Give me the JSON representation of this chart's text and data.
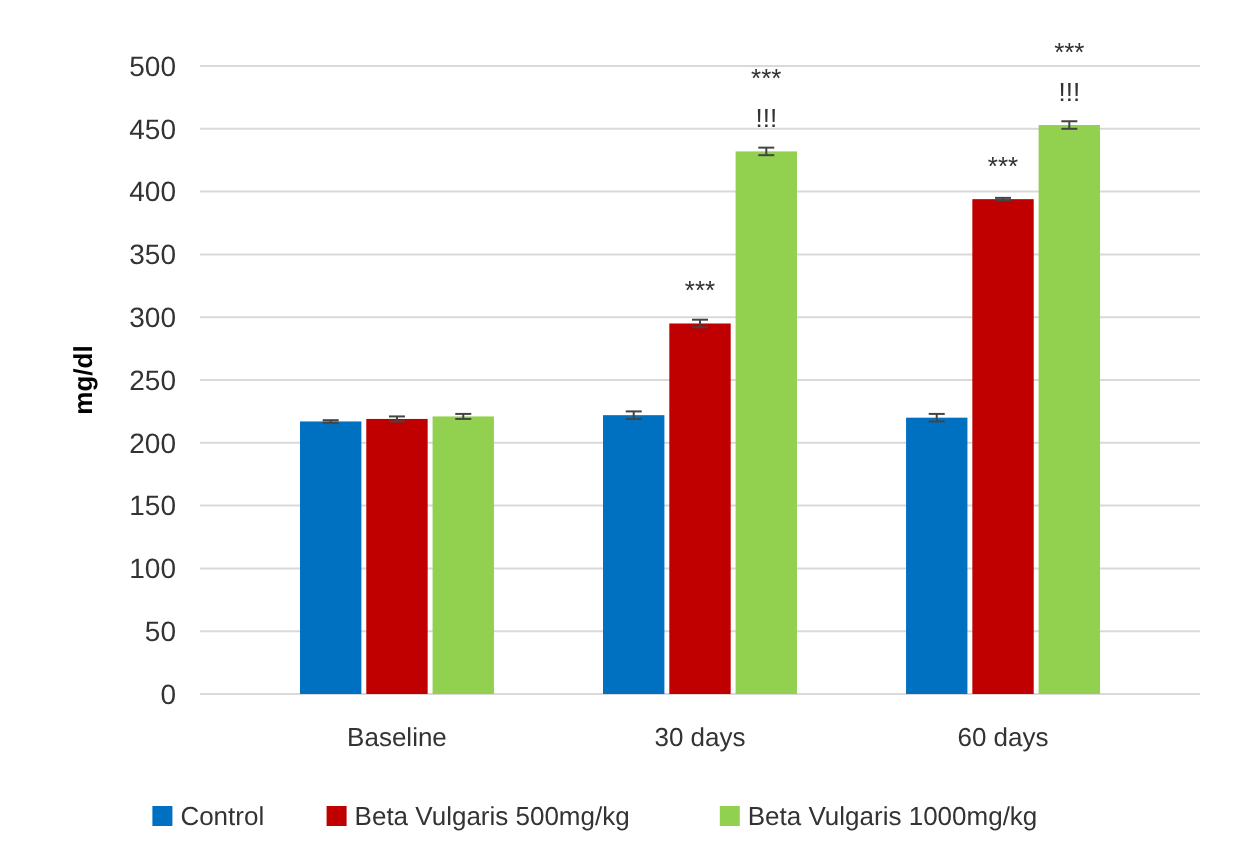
{
  "chart_data": {
    "type": "bar",
    "ylabel": "mg/dl",
    "categories": [
      "Baseline",
      "30 days",
      "60 days"
    ],
    "series": [
      {
        "name": "Control",
        "color": "#0070c0",
        "values": [
          217,
          222,
          220
        ],
        "errors": [
          1,
          3,
          3
        ]
      },
      {
        "name": "Beta Vulgaris 500mg/kg",
        "color": "#c00000",
        "values": [
          219,
          295,
          394
        ],
        "errors": [
          2,
          3,
          1
        ]
      },
      {
        "name": "Beta Vulgaris 1000mg/kg",
        "color": "#92d050",
        "values": [
          221,
          432,
          453
        ],
        "errors": [
          2,
          3,
          3
        ]
      }
    ],
    "ylim": [
      0,
      500
    ],
    "yticks": [
      0,
      50,
      100,
      150,
      200,
      250,
      300,
      350,
      400,
      450,
      500
    ],
    "grid": "y",
    "legend": "bottom",
    "annotations": [
      {
        "text": "***",
        "x": "30 days",
        "y": 295
      },
      "***",
      "!!!",
      {
        "text": "***",
        "x": "60 days",
        "y": 394
      },
      "***",
      "!!!"
    ]
  }
}
